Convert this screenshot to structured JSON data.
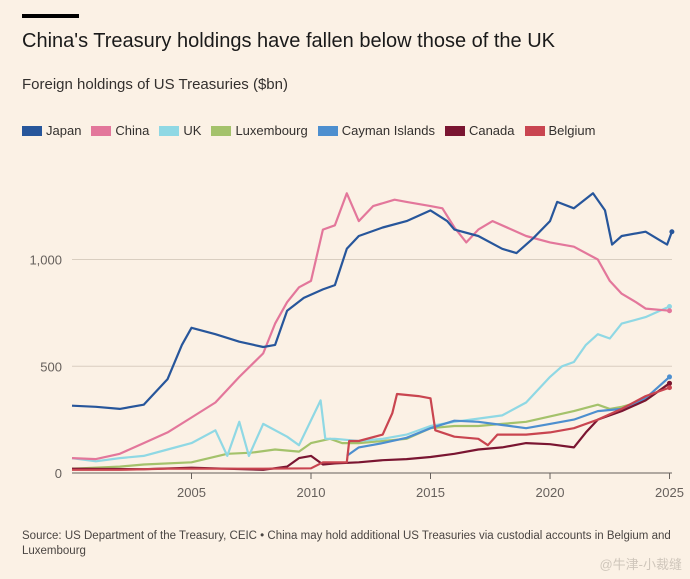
{
  "watermark": "@牛津-小裁缝",
  "chart_data": {
    "type": "line",
    "title": "China's Treasury holdings have fallen below those of the UK",
    "subtitle": "Foreign holdings of US Treasuries ($bn)",
    "xlabel": "",
    "ylabel": "",
    "xlim": [
      2000,
      2025.4
    ],
    "ylim": [
      0,
      1350
    ],
    "xticks": [
      2005,
      2010,
      2015,
      2020,
      2025
    ],
    "yticks": [
      0,
      500,
      1000
    ],
    "ytick_labels": [
      "0",
      "500",
      "1,000"
    ],
    "grid": "horizontal",
    "legend_position": "top-left",
    "source": "Source: US Department of the Treasury, CEIC • China may hold additional US Treasuries via custodial accounts in Belgium and Luxembourg",
    "series": [
      {
        "name": "Japan",
        "color": "#27569b",
        "points": [
          [
            2000,
            315
          ],
          [
            2001,
            310
          ],
          [
            2002,
            300
          ],
          [
            2003,
            320
          ],
          [
            2004,
            440
          ],
          [
            2004.6,
            600
          ],
          [
            2005,
            680
          ],
          [
            2006,
            650
          ],
          [
            2007,
            615
          ],
          [
            2008,
            590
          ],
          [
            2008.5,
            600
          ],
          [
            2009,
            760
          ],
          [
            2009.7,
            820
          ],
          [
            2010.5,
            860
          ],
          [
            2011,
            880
          ],
          [
            2011.5,
            1050
          ],
          [
            2012,
            1110
          ],
          [
            2013,
            1150
          ],
          [
            2014,
            1180
          ],
          [
            2015,
            1230
          ],
          [
            2015.7,
            1180
          ],
          [
            2016,
            1140
          ],
          [
            2017,
            1110
          ],
          [
            2018,
            1050
          ],
          [
            2018.6,
            1030
          ],
          [
            2019.3,
            1100
          ],
          [
            2020,
            1180
          ],
          [
            2020.3,
            1270
          ],
          [
            2021,
            1240
          ],
          [
            2021.8,
            1310
          ],
          [
            2022.3,
            1230
          ],
          [
            2022.6,
            1070
          ],
          [
            2023,
            1110
          ],
          [
            2024,
            1130
          ],
          [
            2024.6,
            1090
          ],
          [
            2024.9,
            1070
          ],
          [
            2025.1,
            1130
          ]
        ]
      },
      {
        "name": "China",
        "color": "#e3779b",
        "points": [
          [
            2000,
            70
          ],
          [
            2001,
            65
          ],
          [
            2002,
            90
          ],
          [
            2003,
            140
          ],
          [
            2004,
            190
          ],
          [
            2005,
            260
          ],
          [
            2006,
            330
          ],
          [
            2007,
            450
          ],
          [
            2008,
            560
          ],
          [
            2008.5,
            700
          ],
          [
            2009,
            800
          ],
          [
            2009.5,
            870
          ],
          [
            2010,
            900
          ],
          [
            2010.5,
            1140
          ],
          [
            2011,
            1160
          ],
          [
            2011.5,
            1310
          ],
          [
            2012,
            1180
          ],
          [
            2012.6,
            1250
          ],
          [
            2013.5,
            1280
          ],
          [
            2014,
            1270
          ],
          [
            2015,
            1250
          ],
          [
            2015.5,
            1240
          ],
          [
            2016,
            1150
          ],
          [
            2016.5,
            1080
          ],
          [
            2017,
            1140
          ],
          [
            2017.6,
            1180
          ],
          [
            2018.4,
            1140
          ],
          [
            2019,
            1110
          ],
          [
            2020,
            1080
          ],
          [
            2021,
            1060
          ],
          [
            2022,
            1000
          ],
          [
            2022.5,
            900
          ],
          [
            2023,
            840
          ],
          [
            2023.6,
            800
          ],
          [
            2024,
            770
          ],
          [
            2025,
            760
          ]
        ]
      },
      {
        "name": "UK",
        "color": "#8fd8e4",
        "points": [
          [
            2000,
            70
          ],
          [
            2001,
            55
          ],
          [
            2002,
            70
          ],
          [
            2003,
            80
          ],
          [
            2004,
            110
          ],
          [
            2005,
            140
          ],
          [
            2006,
            200
          ],
          [
            2006.5,
            80
          ],
          [
            2007,
            240
          ],
          [
            2007.4,
            80
          ],
          [
            2008,
            230
          ],
          [
            2009,
            170
          ],
          [
            2009.5,
            130
          ],
          [
            2010.4,
            340
          ],
          [
            2010.6,
            160
          ],
          [
            2011,
            160
          ],
          [
            2012,
            150
          ],
          [
            2013,
            160
          ],
          [
            2014,
            180
          ],
          [
            2015,
            220
          ],
          [
            2016,
            240
          ],
          [
            2017,
            255
          ],
          [
            2018,
            270
          ],
          [
            2019,
            330
          ],
          [
            2020,
            450
          ],
          [
            2020.5,
            500
          ],
          [
            2021,
            520
          ],
          [
            2021.5,
            600
          ],
          [
            2022,
            650
          ],
          [
            2022.5,
            630
          ],
          [
            2023,
            700
          ],
          [
            2024,
            730
          ],
          [
            2025,
            780
          ]
        ]
      },
      {
        "name": "Luxembourg",
        "color": "#a4c26b",
        "points": [
          [
            2000,
            20
          ],
          [
            2002,
            30
          ],
          [
            2003,
            40
          ],
          [
            2005,
            50
          ],
          [
            2006.5,
            90
          ],
          [
            2007.5,
            95
          ],
          [
            2008.5,
            110
          ],
          [
            2009.5,
            100
          ],
          [
            2010,
            140
          ],
          [
            2010.8,
            160
          ],
          [
            2011.3,
            140
          ],
          [
            2012,
            140
          ],
          [
            2013,
            150
          ],
          [
            2014,
            160
          ],
          [
            2015,
            210
          ],
          [
            2016,
            220
          ],
          [
            2017,
            220
          ],
          [
            2018,
            230
          ],
          [
            2019,
            240
          ],
          [
            2020,
            265
          ],
          [
            2021,
            290
          ],
          [
            2022,
            320
          ],
          [
            2022.5,
            300
          ],
          [
            2023,
            310
          ],
          [
            2024,
            340
          ],
          [
            2025,
            420
          ]
        ]
      },
      {
        "name": "Cayman Islands",
        "color": "#4d8fcf",
        "points": [
          [
            2011.5,
            80
          ],
          [
            2012,
            120
          ],
          [
            2013,
            140
          ],
          [
            2014,
            165
          ],
          [
            2015,
            210
          ],
          [
            2016,
            245
          ],
          [
            2017,
            240
          ],
          [
            2018,
            225
          ],
          [
            2019,
            210
          ],
          [
            2020,
            230
          ],
          [
            2021,
            250
          ],
          [
            2022,
            290
          ],
          [
            2023,
            300
          ],
          [
            2024,
            350
          ],
          [
            2025,
            450
          ]
        ]
      },
      {
        "name": "Canada",
        "color": "#7a1531",
        "points": [
          [
            2000,
            20
          ],
          [
            2003,
            18
          ],
          [
            2005,
            25
          ],
          [
            2008,
            15
          ],
          [
            2009,
            30
          ],
          [
            2009.5,
            70
          ],
          [
            2010,
            80
          ],
          [
            2010.5,
            40
          ],
          [
            2011,
            45
          ],
          [
            2012,
            50
          ],
          [
            2013,
            60
          ],
          [
            2014,
            65
          ],
          [
            2015,
            75
          ],
          [
            2016,
            90
          ],
          [
            2017,
            110
          ],
          [
            2018,
            120
          ],
          [
            2019,
            140
          ],
          [
            2020,
            135
          ],
          [
            2021,
            120
          ],
          [
            2021.5,
            190
          ],
          [
            2022,
            250
          ],
          [
            2023,
            290
          ],
          [
            2024,
            340
          ],
          [
            2025,
            420
          ]
        ]
      },
      {
        "name": "Belgium",
        "color": "#c94550",
        "points": [
          [
            2000,
            15
          ],
          [
            2002,
            15
          ],
          [
            2004,
            20
          ],
          [
            2008,
            20
          ],
          [
            2010,
            22
          ],
          [
            2010.5,
            50
          ],
          [
            2011.5,
            50
          ],
          [
            2011.6,
            150
          ],
          [
            2012,
            150
          ],
          [
            2013,
            180
          ],
          [
            2013.4,
            280
          ],
          [
            2013.6,
            370
          ],
          [
            2014.5,
            360
          ],
          [
            2015,
            350
          ],
          [
            2015.2,
            200
          ],
          [
            2016,
            170
          ],
          [
            2017,
            160
          ],
          [
            2017.4,
            130
          ],
          [
            2017.8,
            180
          ],
          [
            2019,
            180
          ],
          [
            2020,
            190
          ],
          [
            2021,
            210
          ],
          [
            2022,
            250
          ],
          [
            2023,
            300
          ],
          [
            2024,
            360
          ],
          [
            2025,
            400
          ]
        ]
      }
    ]
  }
}
